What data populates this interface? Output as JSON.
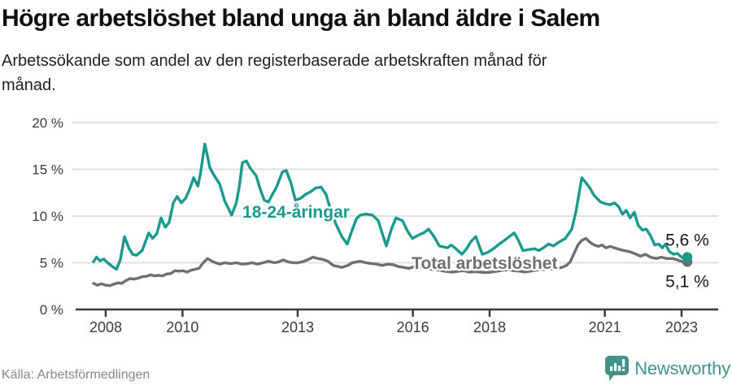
{
  "header": {
    "title": "Högre arbetslöshet bland unga än bland äldre i Salem",
    "subtitle_lines": [
      "Arbetssökande som andel av den registerbaserade arbetskraften månad för",
      "månad."
    ]
  },
  "footer": {
    "source": "Källa: Arbetsförmedlingen",
    "brand": "Newsworthy"
  },
  "colors": {
    "title": "#0f0f0f",
    "subtitle": "#212121",
    "grid": "#e0e0e0",
    "axis": "#3a3a3a",
    "tick_label": "#3c3c3c",
    "value_label": "#1a1a1a",
    "source": "#878787",
    "brand_teal": "#44918a",
    "background": "#ffffff"
  },
  "chart_data": {
    "type": "line",
    "title": "Högre arbetslöshet bland unga än bland äldre i Salem",
    "subtitle": "Arbetssökande som andel av den registerbaserade arbetskraften månad för månad.",
    "xlabel": "",
    "ylabel": "",
    "grid": "horizontal",
    "legend_position": "inline-labels",
    "x_axis": {
      "range": [
        2007.68,
        2023.15
      ],
      "tick_values": [
        2008,
        2010,
        2013,
        2016,
        2018,
        2021,
        2023
      ],
      "tick_labels": [
        "2008",
        "2010",
        "2013",
        "2016",
        "2018",
        "2021",
        "2023"
      ]
    },
    "y_axis": {
      "range": [
        0,
        20
      ],
      "tick_values": [
        0,
        5,
        10,
        15,
        20
      ],
      "tick_labels": [
        "0 %",
        "5 %",
        "10 %",
        "15 %",
        "20 %"
      ]
    },
    "series": [
      {
        "name": "Total arbetslöshet",
        "color": "#6f6f6f",
        "label_anchor": [
          2015.97,
          4.34
        ],
        "end_label": "5,1 %",
        "end_label_offset": [
          -27,
          31
        ],
        "end_value": 5.1,
        "points": [
          [
            2007.68,
            2.8
          ],
          [
            2007.78,
            2.6
          ],
          [
            2007.89,
            2.75
          ],
          [
            2008.0,
            2.6
          ],
          [
            2008.11,
            2.55
          ],
          [
            2008.21,
            2.7
          ],
          [
            2008.32,
            2.85
          ],
          [
            2008.42,
            2.8
          ],
          [
            2008.53,
            3.1
          ],
          [
            2008.63,
            3.3
          ],
          [
            2008.74,
            3.25
          ],
          [
            2008.85,
            3.35
          ],
          [
            2008.95,
            3.5
          ],
          [
            2009.06,
            3.55
          ],
          [
            2009.17,
            3.7
          ],
          [
            2009.27,
            3.6
          ],
          [
            2009.38,
            3.65
          ],
          [
            2009.48,
            3.6
          ],
          [
            2009.59,
            3.8
          ],
          [
            2009.7,
            3.85
          ],
          [
            2009.8,
            4.15
          ],
          [
            2009.91,
            4.1
          ],
          [
            2010.01,
            4.15
          ],
          [
            2010.12,
            4.0
          ],
          [
            2010.22,
            4.2
          ],
          [
            2010.33,
            4.3
          ],
          [
            2010.43,
            4.4
          ],
          [
            2010.54,
            5.0
          ],
          [
            2010.65,
            5.45
          ],
          [
            2010.75,
            5.2
          ],
          [
            2010.86,
            5.0
          ],
          [
            2010.97,
            4.85
          ],
          [
            2011.1,
            5.0
          ],
          [
            2011.25,
            4.9
          ],
          [
            2011.4,
            5.0
          ],
          [
            2011.55,
            4.85
          ],
          [
            2011.7,
            4.9
          ],
          [
            2011.81,
            5.0
          ],
          [
            2011.95,
            4.85
          ],
          [
            2012.1,
            5.0
          ],
          [
            2012.24,
            5.15
          ],
          [
            2012.4,
            5.0
          ],
          [
            2012.51,
            5.1
          ],
          [
            2012.62,
            5.3
          ],
          [
            2012.75,
            5.1
          ],
          [
            2012.88,
            5.0
          ],
          [
            2013.0,
            5.0
          ],
          [
            2013.12,
            5.1
          ],
          [
            2013.25,
            5.3
          ],
          [
            2013.4,
            5.6
          ],
          [
            2013.53,
            5.45
          ],
          [
            2013.66,
            5.35
          ],
          [
            2013.79,
            5.15
          ],
          [
            2013.93,
            4.7
          ],
          [
            2014.05,
            4.6
          ],
          [
            2014.14,
            4.5
          ],
          [
            2014.3,
            4.7
          ],
          [
            2014.42,
            5.0
          ],
          [
            2014.55,
            5.1
          ],
          [
            2014.63,
            5.15
          ],
          [
            2014.78,
            5.0
          ],
          [
            2014.93,
            4.9
          ],
          [
            2015.06,
            4.85
          ],
          [
            2015.2,
            4.7
          ],
          [
            2015.35,
            4.85
          ],
          [
            2015.48,
            4.8
          ],
          [
            2015.62,
            4.6
          ],
          [
            2015.76,
            4.5
          ],
          [
            2015.9,
            4.4
          ],
          [
            2016.05,
            4.6
          ],
          [
            2016.2,
            4.5
          ],
          [
            2016.33,
            4.4
          ],
          [
            2016.48,
            4.3
          ],
          [
            2016.62,
            4.25
          ],
          [
            2016.76,
            4.15
          ],
          [
            2016.9,
            4.05
          ],
          [
            2017.05,
            4.0
          ],
          [
            2017.2,
            4.1
          ],
          [
            2017.33,
            4.15
          ],
          [
            2017.47,
            4.0
          ],
          [
            2017.62,
            4.05
          ],
          [
            2017.76,
            4.0
          ],
          [
            2017.9,
            3.95
          ],
          [
            2018.05,
            4.0
          ],
          [
            2018.2,
            4.1
          ],
          [
            2018.35,
            4.2
          ],
          [
            2018.5,
            4.25
          ],
          [
            2018.64,
            4.15
          ],
          [
            2018.78,
            4.1
          ],
          [
            2018.92,
            4.0
          ],
          [
            2019.06,
            4.1
          ],
          [
            2019.2,
            4.2
          ],
          [
            2019.33,
            4.25
          ],
          [
            2019.47,
            4.3
          ],
          [
            2019.6,
            4.35
          ],
          [
            2019.74,
            4.4
          ],
          [
            2019.88,
            4.5
          ],
          [
            2020.0,
            4.7
          ],
          [
            2020.1,
            5.1
          ],
          [
            2020.2,
            6.0
          ],
          [
            2020.3,
            6.9
          ],
          [
            2020.4,
            7.4
          ],
          [
            2020.51,
            7.6
          ],
          [
            2020.61,
            7.2
          ],
          [
            2020.72,
            6.9
          ],
          [
            2020.83,
            6.75
          ],
          [
            2020.93,
            6.9
          ],
          [
            2021.03,
            6.6
          ],
          [
            2021.14,
            6.75
          ],
          [
            2021.25,
            6.6
          ],
          [
            2021.36,
            6.45
          ],
          [
            2021.5,
            6.3
          ],
          [
            2021.63,
            6.2
          ],
          [
            2021.77,
            6.0
          ],
          [
            2021.93,
            5.7
          ],
          [
            2022.06,
            5.9
          ],
          [
            2022.19,
            5.6
          ],
          [
            2022.34,
            5.45
          ],
          [
            2022.47,
            5.6
          ],
          [
            2022.62,
            5.45
          ],
          [
            2022.77,
            5.45
          ],
          [
            2022.89,
            5.3
          ],
          [
            2023.0,
            5.15
          ],
          [
            2023.08,
            5.0
          ],
          [
            2023.15,
            5.1
          ]
        ]
      },
      {
        "name": "18-24-åringar",
        "color": "#1a9a8d",
        "label_anchor": [
          2011.56,
          9.82
        ],
        "end_label": "5,6 %",
        "end_label_offset": [
          -27,
          -14
        ],
        "end_value": 5.6,
        "points": [
          [
            2007.68,
            5.1
          ],
          [
            2007.76,
            5.6
          ],
          [
            2007.85,
            5.2
          ],
          [
            2007.95,
            5.4
          ],
          [
            2008.05,
            5.0
          ],
          [
            2008.17,
            4.6
          ],
          [
            2008.28,
            4.3
          ],
          [
            2008.38,
            5.3
          ],
          [
            2008.49,
            7.8
          ],
          [
            2008.6,
            6.6
          ],
          [
            2008.7,
            5.9
          ],
          [
            2008.8,
            5.8
          ],
          [
            2008.95,
            6.3
          ],
          [
            2009.12,
            8.2
          ],
          [
            2009.22,
            7.6
          ],
          [
            2009.33,
            8.1
          ],
          [
            2009.44,
            9.8
          ],
          [
            2009.55,
            8.8
          ],
          [
            2009.65,
            9.3
          ],
          [
            2009.76,
            11.4
          ],
          [
            2009.86,
            12.1
          ],
          [
            2009.97,
            11.4
          ],
          [
            2010.08,
            11.9
          ],
          [
            2010.18,
            12.8
          ],
          [
            2010.29,
            14.1
          ],
          [
            2010.4,
            13.2
          ],
          [
            2010.47,
            14.6
          ],
          [
            2010.58,
            17.7
          ],
          [
            2010.65,
            16.4
          ],
          [
            2010.71,
            15.2
          ],
          [
            2010.8,
            14.5
          ],
          [
            2010.97,
            13.4
          ],
          [
            2011.1,
            11.6
          ],
          [
            2011.28,
            10.1
          ],
          [
            2011.4,
            11.4
          ],
          [
            2011.48,
            13.2
          ],
          [
            2011.56,
            15.7
          ],
          [
            2011.66,
            15.9
          ],
          [
            2011.77,
            15.1
          ],
          [
            2011.92,
            14.3
          ],
          [
            2012.03,
            12.8
          ],
          [
            2012.13,
            11.7
          ],
          [
            2012.24,
            11.5
          ],
          [
            2012.34,
            12.3
          ],
          [
            2012.45,
            13.1
          ],
          [
            2012.6,
            14.7
          ],
          [
            2012.7,
            14.9
          ],
          [
            2012.82,
            13.6
          ],
          [
            2012.94,
            11.7
          ],
          [
            2013.08,
            11.9
          ],
          [
            2013.2,
            12.3
          ],
          [
            2013.34,
            12.6
          ],
          [
            2013.47,
            13.0
          ],
          [
            2013.61,
            13.1
          ],
          [
            2013.74,
            12.3
          ],
          [
            2013.87,
            10.5
          ],
          [
            2014.0,
            9.1
          ],
          [
            2014.15,
            7.8
          ],
          [
            2014.29,
            7.0
          ],
          [
            2014.42,
            8.5
          ],
          [
            2014.53,
            9.7
          ],
          [
            2014.63,
            10.1
          ],
          [
            2014.78,
            10.2
          ],
          [
            2014.95,
            10.1
          ],
          [
            2015.1,
            9.5
          ],
          [
            2015.2,
            8.2
          ],
          [
            2015.31,
            6.8
          ],
          [
            2015.44,
            8.6
          ],
          [
            2015.56,
            9.8
          ],
          [
            2015.73,
            9.5
          ],
          [
            2015.86,
            8.4
          ],
          [
            2015.99,
            7.6
          ],
          [
            2016.12,
            7.9
          ],
          [
            2016.28,
            8.2
          ],
          [
            2016.41,
            8.6
          ],
          [
            2016.55,
            7.8
          ],
          [
            2016.69,
            6.8
          ],
          [
            2016.9,
            6.6
          ],
          [
            2017.0,
            6.9
          ],
          [
            2017.12,
            6.5
          ],
          [
            2017.28,
            5.9
          ],
          [
            2017.4,
            6.5
          ],
          [
            2017.52,
            7.3
          ],
          [
            2017.64,
            7.8
          ],
          [
            2017.72,
            6.9
          ],
          [
            2017.81,
            5.9
          ],
          [
            2017.95,
            6.1
          ],
          [
            2018.1,
            6.5
          ],
          [
            2018.25,
            7.0
          ],
          [
            2018.42,
            7.5
          ],
          [
            2018.64,
            8.2
          ],
          [
            2018.75,
            7.4
          ],
          [
            2018.87,
            6.3
          ],
          [
            2019.0,
            6.4
          ],
          [
            2019.17,
            6.5
          ],
          [
            2019.28,
            6.3
          ],
          [
            2019.4,
            6.6
          ],
          [
            2019.53,
            7.0
          ],
          [
            2019.66,
            6.8
          ],
          [
            2019.8,
            7.2
          ],
          [
            2019.97,
            7.6
          ],
          [
            2020.14,
            8.6
          ],
          [
            2020.25,
            10.5
          ],
          [
            2020.4,
            14.1
          ],
          [
            2020.5,
            13.6
          ],
          [
            2020.61,
            13.0
          ],
          [
            2020.72,
            12.2
          ],
          [
            2020.89,
            11.5
          ],
          [
            2021.03,
            11.3
          ],
          [
            2021.14,
            11.2
          ],
          [
            2021.25,
            11.4
          ],
          [
            2021.36,
            11.0
          ],
          [
            2021.46,
            10.2
          ],
          [
            2021.56,
            10.6
          ],
          [
            2021.66,
            9.8
          ],
          [
            2021.77,
            10.4
          ],
          [
            2021.87,
            9.0
          ],
          [
            2021.98,
            8.5
          ],
          [
            2022.08,
            8.6
          ],
          [
            2022.19,
            7.9
          ],
          [
            2022.3,
            6.9
          ],
          [
            2022.4,
            7.0
          ],
          [
            2022.5,
            6.6
          ],
          [
            2022.58,
            7.0
          ],
          [
            2022.68,
            6.2
          ],
          [
            2022.79,
            5.9
          ],
          [
            2022.89,
            6.0
          ],
          [
            2023.0,
            5.6
          ],
          [
            2023.08,
            5.4
          ],
          [
            2023.15,
            5.6
          ]
        ]
      }
    ]
  }
}
